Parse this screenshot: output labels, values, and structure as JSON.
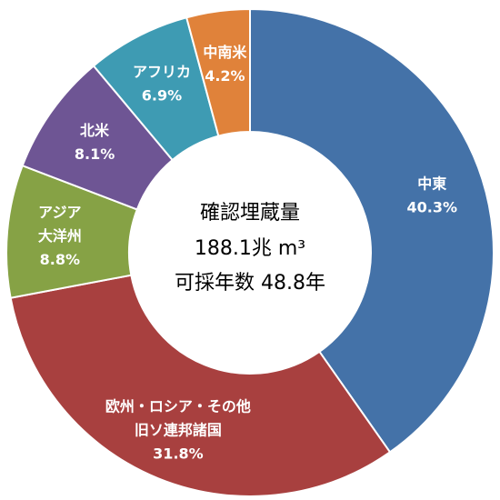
{
  "chart_data": {
    "type": "pie",
    "variant": "donut",
    "center_text": {
      "line1": "確認埋蔵量",
      "line2": "188.1兆 m³",
      "line3": "可採年数 48.8年"
    },
    "slices": [
      {
        "name_lines": [
          "中東"
        ],
        "value_label": "40.3%",
        "value": 40.3,
        "color": "#4472A8"
      },
      {
        "name_lines": [
          "欧州・ロシア・その他",
          "旧ソ連邦諸国"
        ],
        "value_label": "31.8%",
        "value": 31.8,
        "color": "#A8403F"
      },
      {
        "name_lines": [
          "アジア",
          "大洋州"
        ],
        "value_label": "8.8%",
        "value": 8.8,
        "color": "#86A245"
      },
      {
        "name_lines": [
          "北米"
        ],
        "value_label": "8.1%",
        "value": 8.1,
        "color": "#6E5594"
      },
      {
        "name_lines": [
          "アフリカ"
        ],
        "value_label": "6.9%",
        "value": 6.9,
        "color": "#3E9BB3"
      },
      {
        "name_lines": [
          "中南米"
        ],
        "value_label": "4.2%",
        "value": 4.2,
        "color": "#E0823A"
      }
    ],
    "start": "12 o'clock",
    "direction": "clockwise",
    "legend": "none"
  }
}
